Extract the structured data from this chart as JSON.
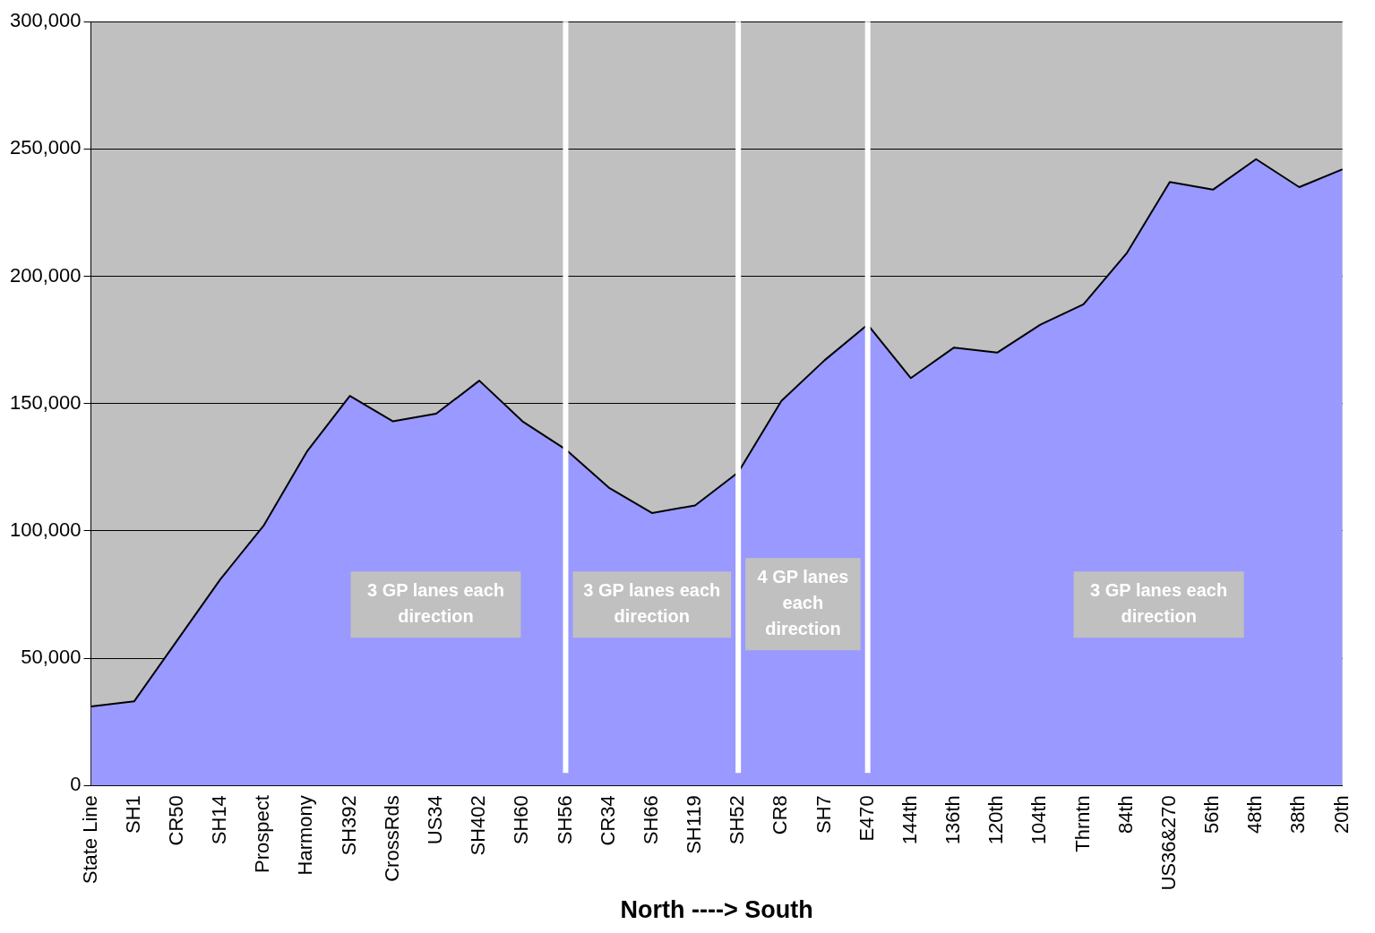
{
  "chart_data": {
    "type": "area",
    "xlabel": "North ----> South",
    "categories": [
      "State Line",
      "SH1",
      "CR50",
      "SH14",
      "Prospect",
      "Harmony",
      "SH392",
      "CrossRds",
      "US34",
      "SH402",
      "SH60",
      "SH56",
      "CR34",
      "SH66",
      "SH119",
      "SH52",
      "CR8",
      "SH7",
      "E470",
      "144th",
      "136th",
      "120th",
      "104th",
      "Thrntn",
      "84th",
      "US36&270",
      "56th",
      "48th",
      "38th",
      "20th"
    ],
    "series": [
      {
        "color": "#9999ff",
        "values": [
          31000,
          33000,
          57000,
          81000,
          102000,
          131000,
          153000,
          143000,
          146000,
          159000,
          143000,
          132000,
          117000,
          107000,
          110000,
          123000,
          151000,
          167000,
          181000,
          160000,
          172000,
          170000,
          181000,
          189000,
          209000,
          237000,
          234000,
          246000,
          235000,
          242000
        ]
      }
    ],
    "ylim": [
      0,
      300000
    ],
    "yticks": [
      0,
      {
        "value": 50000,
        "label": "50,000"
      },
      {
        "value": 100000,
        "label": "100,000"
      },
      {
        "value": 150000,
        "label": "150,000"
      },
      {
        "value": 200000,
        "label": "200,000"
      },
      {
        "value": 250000,
        "label": "250,000"
      },
      {
        "value": 300000,
        "label": "300,000"
      }
    ],
    "grid": "y",
    "legend": false,
    "marker": "none",
    "ref_lines": [
      {
        "axis": "x",
        "value": "SH56",
        "color": "#ffffff"
      },
      {
        "axis": "x",
        "value": "SH52",
        "color": "#ffffff"
      },
      {
        "axis": "x",
        "value": "E470",
        "color": "#ffffff"
      }
    ],
    "annotations": [
      "3 GP lanes each direction",
      "3 GP lanes each direction",
      "4 GP lanes each direction",
      "3 GP lanes each direction"
    ]
  }
}
